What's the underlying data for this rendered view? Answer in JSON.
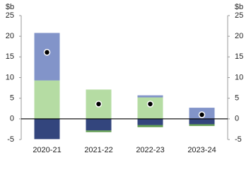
{
  "chart_data": {
    "type": "bar",
    "stacked": true,
    "unit_label": "$b",
    "categories": [
      "2020-21",
      "2021-22",
      "2022-23",
      "2023-24"
    ],
    "series": [
      {
        "color": "#b5dca3",
        "values": [
          9.3,
          7.1,
          5.2,
          0
        ]
      },
      {
        "color": "#8294c9",
        "values": [
          11.5,
          0,
          0.5,
          2.7
        ]
      },
      {
        "color": "#33457d",
        "values": [
          -4.9,
          -2.8,
          -1.5,
          -1.3
        ]
      },
      {
        "color": "#5e9b4c",
        "values": [
          0,
          -0.4,
          -0.5,
          -0.4
        ]
      }
    ],
    "markers": {
      "color": "#000000",
      "values": [
        16.1,
        3.6,
        3.6,
        1.0
      ]
    },
    "ylim": [
      -5,
      25
    ],
    "yticks": [
      -5,
      0,
      5,
      10,
      15,
      20,
      25
    ]
  }
}
